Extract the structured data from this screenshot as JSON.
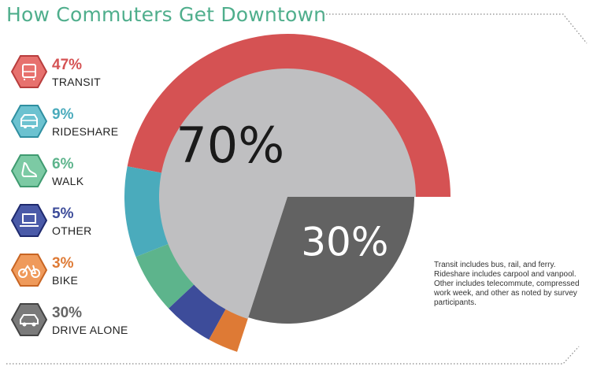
{
  "title": "How Commuters Get Downtown",
  "legend": [
    {
      "pct": "47%",
      "label": "TRANSIT",
      "color": "#d55253",
      "icon": "bus-icon"
    },
    {
      "pct": "9%",
      "label": "RIDESHARE",
      "color": "#4aabbc",
      "icon": "van-icon"
    },
    {
      "pct": "6%",
      "label": "WALK",
      "color": "#5db48c",
      "icon": "shoe-icon"
    },
    {
      "pct": "5%",
      "label": "OTHER",
      "color": "#3d4c9a",
      "icon": "laptop-icon"
    },
    {
      "pct": "3%",
      "label": "BIKE",
      "color": "#de7a35",
      "icon": "bike-icon"
    },
    {
      "pct": "30%",
      "label": "DRIVE ALONE",
      "color": "#666666",
      "icon": "car-icon"
    }
  ],
  "note": "Transit includes bus, rail, and ferry. Rideshare includes carpool and vanpool. Other includes telecommute, compressed work week, and other as noted by survey participants.",
  "chart_data": {
    "type": "pie",
    "inner": [
      {
        "label": "70%",
        "value": 70,
        "color": "#bfbfc1"
      },
      {
        "label": "30%",
        "value": 30,
        "color": "#626262"
      }
    ],
    "outer_ring": [
      {
        "name": "TRANSIT",
        "value": 47,
        "color": "#d55253"
      },
      {
        "name": "RIDESHARE",
        "value": 9,
        "color": "#4aabbc"
      },
      {
        "name": "WALK",
        "value": 6,
        "color": "#5db48c"
      },
      {
        "name": "OTHER",
        "value": 5,
        "color": "#3d4c9a"
      },
      {
        "name": "BIKE",
        "value": 3,
        "color": "#de7a35"
      }
    ]
  }
}
